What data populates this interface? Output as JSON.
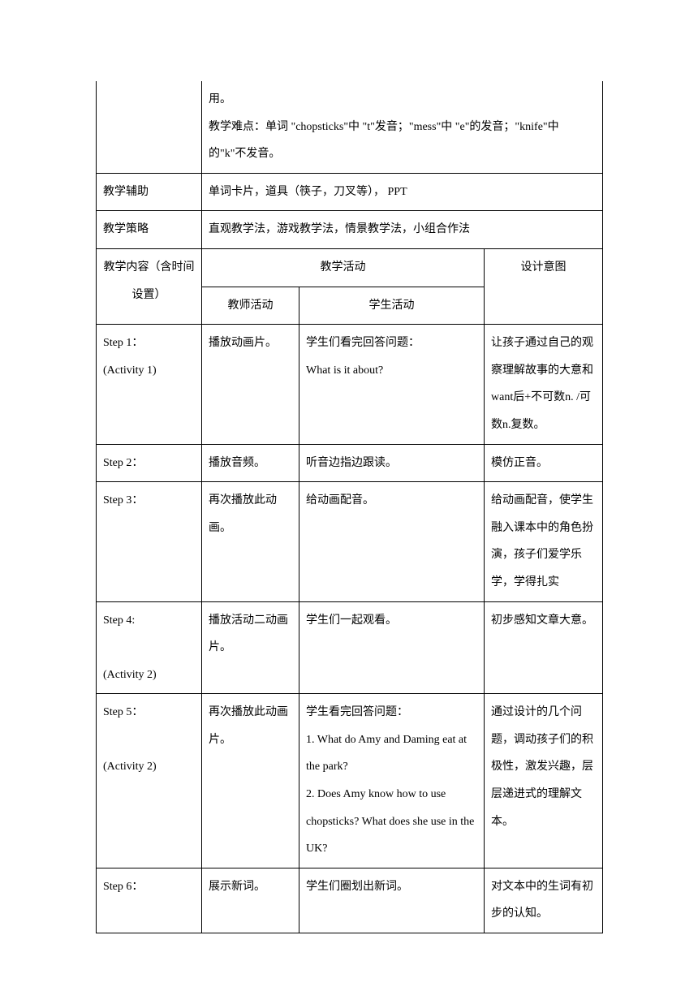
{
  "row0": {
    "content": "用。\n教学难点：单词 \"chopsticks\"中 \"t\"发音；\"mess\"中 \"e\"的发音；\"knife\"中的\"k\"不发音。"
  },
  "row1": {
    "label": "教学辅助",
    "content": "单词卡片，道具（筷子，刀叉等）， PPT"
  },
  "row2": {
    "label": "教学策略",
    "content": "直观教学法，游戏教学法，情景教学法，小组合作法"
  },
  "header": {
    "col1": "教学内容（含时间设置）",
    "col2_top": "教学活动",
    "col2_left": "教师活动",
    "col2_right": "学生活动",
    "col3": "设计意图"
  },
  "steps": [
    {
      "col1a": "Step 1：",
      "col1b": "(Activity 1)",
      "col2": "播放动画片。",
      "col3a": "学生们看完回答问题：",
      "col3b": "What is it about?",
      "col4": "让孩子通过自己的观察理解故事的大意和want后+不可数n. /可数n.复数。"
    },
    {
      "col1a": "Step 2：",
      "col1b": "",
      "col2": "播放音频。",
      "col3a": "听音边指边跟读。",
      "col3b": "",
      "col4": "模仿正音。"
    },
    {
      "col1a": "Step 3：",
      "col1b": "",
      "col2": "再次播放此动画。",
      "col3a": "给动画配音。",
      "col3b": "",
      "col4": "给动画配音，使学生融入课本中的角色扮演，孩子们爱学乐学，学得扎实"
    },
    {
      "col1a": "Step 4:",
      "col1b": "(Activity 2)",
      "col2": "播放活动二动画片。",
      "col3a": "学生们一起观看。",
      "col3b": "",
      "col4": "初步感知文章大意。"
    },
    {
      "col1a": "Step 5：",
      "col1b": "(Activity 2)",
      "col2": "再次播放此动画片。",
      "col3a": "学生看完回答问题：",
      "col3b": "1. What do Amy and Daming eat at the park?",
      "col3c": "2. Does Amy know how to use chopsticks? What does she use in the UK?",
      "col4": "通过设计的几个问题，调动孩子们的积极性，激发兴趣，层层递进式的理解文本。"
    },
    {
      "col1a": "Step 6：",
      "col1b": "",
      "col2": "展示新词。",
      "col3a": "学生们圈划出新词。",
      "col3b": "",
      "col4": "对文本中的生词有初步的认知。"
    }
  ]
}
